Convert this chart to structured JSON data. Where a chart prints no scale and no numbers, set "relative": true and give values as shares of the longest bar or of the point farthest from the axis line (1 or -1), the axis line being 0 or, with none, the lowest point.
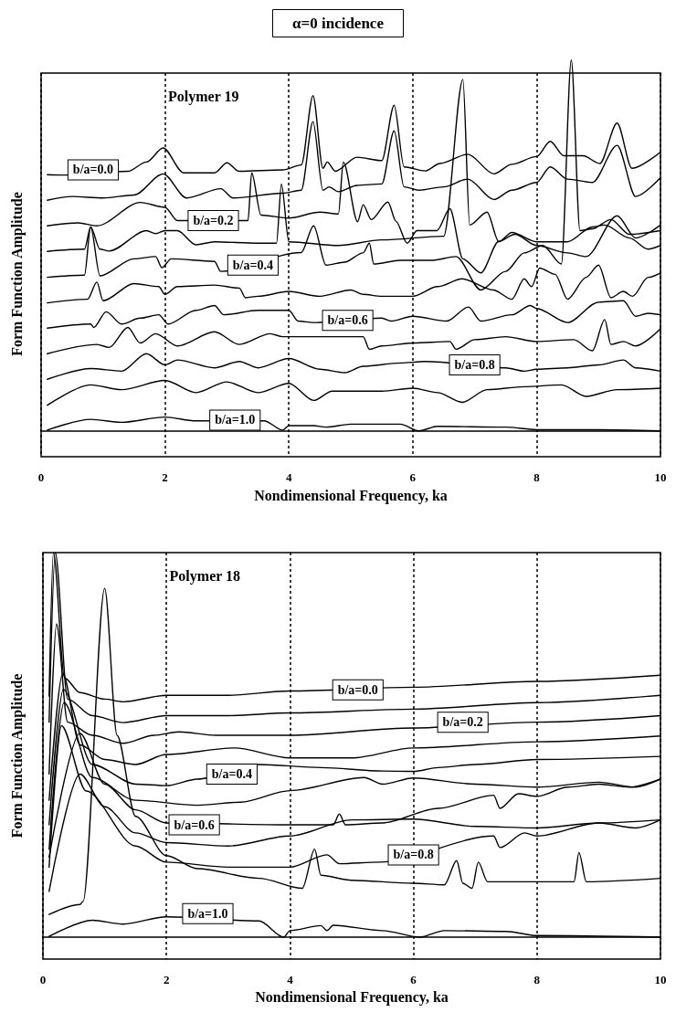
{
  "chart_data": [
    {
      "type": "line",
      "title": "α=0 incidence",
      "xlabel": "Nondimensional Frequency, ka",
      "ylabel": "Form Function Amplitude",
      "relative": true,
      "xlim": [
        0,
        10
      ],
      "xticks": [
        0,
        2,
        4,
        6,
        8,
        10
      ],
      "grid": "x",
      "marker": "none",
      "line_style": "solid",
      "annotations": [
        "Polymer 19",
        {
          "text": "b/a=0.0",
          "x": 0.84,
          "y": 0.704
        },
        {
          "text": "b/a=0.2",
          "x": 2.78,
          "y": 0.567
        },
        {
          "text": "b/a=0.4",
          "x": 3.42,
          "y": 0.447
        },
        {
          "text": "b/a=0.6",
          "x": 4.95,
          "y": 0.298
        },
        {
          "text": "b/a=0.8",
          "x": 7.0,
          "y": 0.178
        },
        {
          "text": "b/a=1.0",
          "x": 3.13,
          "y": 0.029
        }
      ],
      "series": [
        {
          "color": "#000000",
          "x": [
            0.1,
            0.35,
            1.4,
            1.7,
            1.97,
            2.3,
            2.8,
            3.0,
            3.2,
            3.9,
            4.2,
            4.39,
            4.55,
            4.62,
            4.75,
            5.1,
            5.5,
            5.7,
            5.86,
            6.2,
            6.44,
            6.89,
            7.31,
            7.6,
            8.0,
            8.22,
            8.44,
            8.75,
            9.02,
            9.3,
            9.54,
            10
          ],
          "values": [
            0.691,
            0.69,
            0.7,
            0.725,
            0.763,
            0.696,
            0.696,
            0.723,
            0.7,
            0.704,
            0.717,
            0.904,
            0.708,
            0.725,
            0.7,
            0.738,
            0.729,
            0.878,
            0.712,
            0.701,
            0.721,
            0.746,
            0.693,
            0.719,
            0.74,
            0.781,
            0.742,
            0.742,
            0.721,
            0.83,
            0.708,
            0.752
          ]
        },
        {
          "color": "#000000",
          "x": [
            0.1,
            0.5,
            1.0,
            1.5,
            1.97,
            2.35,
            2.9,
            3.1,
            3.9,
            4.2,
            4.39,
            4.55,
            4.65,
            4.8,
            5.1,
            5.5,
            5.7,
            5.86,
            6.1,
            6.5,
            6.89,
            7.31,
            7.6,
            8.0,
            8.22,
            8.5,
            8.9,
            9.3,
            9.6,
            10
          ],
          "values": [
            0.622,
            0.632,
            0.628,
            0.636,
            0.693,
            0.628,
            0.653,
            0.628,
            0.641,
            0.649,
            0.834,
            0.649,
            0.658,
            0.645,
            0.662,
            0.666,
            0.809,
            0.658,
            0.649,
            0.658,
            0.679,
            0.624,
            0.649,
            0.67,
            0.712,
            0.679,
            0.67,
            0.77,
            0.632,
            0.683
          ]
        },
        {
          "color": "#000000",
          "x": [
            0.1,
            0.6,
            0.9,
            1.6,
            2.0,
            2.2,
            3.34,
            3.4,
            3.55,
            4.0,
            4.5,
            4.8,
            4.88,
            5.11,
            5.2,
            5.33,
            5.6,
            5.73,
            5.91,
            6.07,
            6.39,
            6.6,
            6.81,
            7.1,
            7.39,
            7.65,
            8.0,
            8.5,
            8.8,
            9.3,
            9.6,
            10
          ],
          "values": [
            0.553,
            0.561,
            0.553,
            0.616,
            0.603,
            0.567,
            0.567,
            0.696,
            0.582,
            0.574,
            0.59,
            0.585,
            0.725,
            0.564,
            0.61,
            0.57,
            0.617,
            0.565,
            0.506,
            0.54,
            0.54,
            0.599,
            0.464,
            0.426,
            0.511,
            0.53,
            0.5,
            0.48,
            0.47,
            0.58,
            0.52,
            0.555
          ]
        },
        {
          "color": "#000000",
          "x": [
            0.1,
            0.7,
            0.8,
            0.95,
            1.1,
            1.7,
            1.85,
            2.0,
            2.2,
            2.5,
            2.8,
            3.5,
            3.8,
            3.88,
            4.0,
            4.8,
            5.5,
            6.5,
            6.81,
            6.92,
            7.2,
            7.39,
            7.6,
            8.0,
            8.5,
            8.9,
            9.1,
            9.5,
            9.8,
            10
          ],
          "values": [
            0.484,
            0.49,
            0.55,
            0.49,
            0.485,
            0.54,
            0.532,
            0.54,
            0.54,
            0.502,
            0.51,
            0.506,
            0.506,
            0.666,
            0.51,
            0.5,
            0.515,
            0.525,
            0.948,
            0.555,
            0.59,
            0.51,
            0.535,
            0.51,
            0.51,
            0.55,
            0.555,
            0.52,
            0.49,
            0.5
          ]
        },
        {
          "color": "#000000",
          "x": [
            0.1,
            0.7,
            0.8,
            0.95,
            1.5,
            1.85,
            1.95,
            2.1,
            2.8,
            2.9,
            4.2,
            4.4,
            4.6,
            4.9,
            5.2,
            5.3,
            5.37,
            5.8,
            6.3,
            6.7,
            7.1,
            7.5,
            7.8,
            8.1,
            8.4,
            8.56,
            8.7,
            8.9,
            9.2,
            9.5,
            10
          ],
          "values": [
            0.414,
            0.42,
            0.55,
            0.418,
            0.464,
            0.47,
            0.44,
            0.464,
            0.457,
            0.43,
            0.481,
            0.553,
            0.447,
            0.455,
            0.48,
            0.506,
            0.45,
            0.46,
            0.46,
            0.47,
            0.38,
            0.43,
            0.48,
            0.5,
            0.45,
            1.0,
            0.54,
            0.545,
            0.57,
            0.53,
            0.54
          ]
        },
        {
          "color": "#000000",
          "x": [
            0.1,
            0.75,
            0.9,
            1.0,
            1.5,
            1.9,
            2.0,
            2.2,
            2.8,
            3.2,
            3.3,
            3.5,
            4.0,
            4.5,
            5.0,
            5.2,
            5.5,
            6.0,
            6.4,
            6.8,
            7.3,
            7.6,
            7.8,
            7.92,
            8.05,
            8.3,
            8.5,
            8.8,
            9.0,
            9.2,
            9.4,
            9.55,
            9.8,
            10
          ],
          "values": [
            0.345,
            0.355,
            0.401,
            0.351,
            0.397,
            0.389,
            0.368,
            0.389,
            0.393,
            0.385,
            0.359,
            0.363,
            0.376,
            0.363,
            0.38,
            0.368,
            0.363,
            0.363,
            0.389,
            0.41,
            0.38,
            0.355,
            0.41,
            0.389,
            0.439,
            0.422,
            0.355,
            0.414,
            0.447,
            0.359,
            0.376,
            0.363,
            0.414,
            0.426
          ]
        },
        {
          "color": "#000000",
          "x": [
            0.1,
            0.8,
            0.85,
            1.05,
            1.3,
            1.6,
            1.9,
            2.05,
            2.5,
            2.8,
            2.95,
            3.5,
            4.0,
            4.15,
            4.4,
            5.5,
            5.65,
            6.0,
            6.55,
            6.9,
            7.1,
            7.6,
            7.9,
            8.0,
            8.5,
            9.0,
            9.4,
            9.6,
            9.8,
            10
          ],
          "values": [
            0.277,
            0.288,
            0.279,
            0.321,
            0.288,
            0.304,
            0.313,
            0.288,
            0.325,
            0.338,
            0.313,
            0.325,
            0.325,
            0.296,
            0.292,
            0.304,
            0.296,
            0.309,
            0.296,
            0.334,
            0.296,
            0.313,
            0.338,
            0.33,
            0.292,
            0.347,
            0.351,
            0.309,
            0.317,
            0.313
          ]
        },
        {
          "color": "#000000",
          "x": [
            0.1,
            0.9,
            1.1,
            1.4,
            1.6,
            1.85,
            2.2,
            2.8,
            3.2,
            3.7,
            3.9,
            4.6,
            5.2,
            5.3,
            5.5,
            6.0,
            6.6,
            6.7,
            7.0,
            7.5,
            8.0,
            8.6,
            8.9,
            9.1,
            9.2,
            9.4,
            9.6,
            10
          ],
          "values": [
            0.208,
            0.233,
            0.225,
            0.279,
            0.237,
            0.262,
            0.229,
            0.267,
            0.233,
            0.262,
            0.254,
            0.254,
            0.254,
            0.22,
            0.229,
            0.237,
            0.241,
            0.22,
            0.246,
            0.254,
            0.241,
            0.246,
            0.216,
            0.3,
            0.233,
            0.241,
            0.229,
            0.275
          ]
        },
        {
          "color": "#000000",
          "x": [
            0.1,
            0.8,
            1.3,
            1.7,
            2.0,
            2.2,
            2.8,
            3.2,
            3.5,
            4.0,
            4.5,
            4.9,
            5.2,
            5.8,
            6.2,
            7.5,
            7.8,
            8.0,
            8.5,
            9.0,
            9.4,
            9.6,
            10
          ],
          "values": [
            0.139,
            0.168,
            0.161,
            0.208,
            0.178,
            0.191,
            0.17,
            0.187,
            0.17,
            0.195,
            0.166,
            0.157,
            0.174,
            0.183,
            0.187,
            0.17,
            0.161,
            0.166,
            0.17,
            0.178,
            0.191,
            0.17,
            0.161
          ]
        },
        {
          "color": "#000000",
          "x": [
            0.1,
            0.8,
            1.3,
            2.0,
            2.5,
            3.0,
            3.5,
            4.0,
            4.4,
            4.7,
            5.5,
            6.0,
            6.4,
            6.8,
            7.2,
            7.8,
            8.4,
            8.8,
            9.3,
            10
          ],
          "values": [
            0.069,
            0.124,
            0.111,
            0.136,
            0.103,
            0.132,
            0.103,
            0.128,
            0.082,
            0.107,
            0.107,
            0.115,
            0.103,
            0.077,
            0.111,
            0.119,
            0.124,
            0.093,
            0.111,
            0.115
          ]
        },
        {
          "color": "#000000",
          "x": [
            0.1,
            0.8,
            1.3,
            2.0,
            2.5,
            3.6,
            3.9,
            4.0,
            4.4,
            4.6,
            5.0,
            5.8,
            6.1,
            6.4,
            7.5,
            8.0,
            9.0,
            10
          ],
          "values": [
            0.002,
            0.031,
            0.023,
            0.037,
            0.027,
            0.027,
            0.002,
            0.014,
            0.014,
            0.01,
            0.018,
            0.018,
            0,
            0.012,
            0.01,
            0.003,
            0.003,
            0
          ]
        }
      ]
    },
    {
      "type": "line",
      "xlabel": "Nondimensional Frequency, ka",
      "ylabel": "Form Function Amplitude",
      "relative": true,
      "xlim": [
        0,
        10
      ],
      "xticks": [
        0,
        2,
        4,
        6,
        8,
        10
      ],
      "grid": "x",
      "marker": "none",
      "line_style": "solid",
      "annotations": [
        "Polymer 18",
        {
          "text": "b/a=0.0",
          "x": 5.1,
          "y": 0.643
        },
        {
          "text": "b/a=0.2",
          "x": 6.8,
          "y": 0.559
        },
        {
          "text": "b/a=0.4",
          "x": 3.06,
          "y": 0.424
        },
        {
          "text": "b/a=0.6",
          "x": 2.45,
          "y": 0.292
        },
        {
          "text": "b/a=0.8",
          "x": 6.0,
          "y": 0.214
        },
        {
          "text": "b/a=1.0",
          "x": 2.67,
          "y": 0.061
        }
      ],
      "series": [
        {
          "color": "#000000",
          "x": [
            0.1,
            0.17,
            0.35,
            0.6,
            1.0,
            1.3,
            2.0,
            3.0,
            4.0,
            6.0,
            8.0,
            10
          ],
          "values": [
            0.627,
            1.0,
            0.674,
            0.636,
            0.619,
            0.612,
            0.629,
            0.629,
            0.64,
            0.65,
            0.665,
            0.681
          ]
        },
        {
          "color": "#000000",
          "x": [
            0.1,
            0.2,
            0.4,
            0.8,
            1.3,
            2.0,
            3.0,
            4.0,
            6.0,
            8.0,
            10
          ],
          "values": [
            0.559,
            1.0,
            0.619,
            0.576,
            0.558,
            0.576,
            0.576,
            0.583,
            0.593,
            0.61,
            0.629
          ]
        },
        {
          "color": "#000000",
          "x": [
            0.1,
            0.22,
            0.4,
            0.8,
            1.3,
            1.8,
            2.2,
            2.8,
            4.0,
            6.0,
            8.0,
            10
          ],
          "values": [
            0.424,
            0.814,
            0.559,
            0.525,
            0.504,
            0.525,
            0.534,
            0.525,
            0.525,
            0.544,
            0.559,
            0.576
          ]
        },
        {
          "color": "#000000",
          "x": [
            0.1,
            0.32,
            0.6,
            1.0,
            1.5,
            2.0,
            3.1,
            4.0,
            5.0,
            6.0,
            8.0,
            10
          ],
          "values": [
            0.356,
            0.686,
            0.5,
            0.462,
            0.449,
            0.475,
            0.492,
            0.466,
            0.466,
            0.492,
            0.508,
            0.523
          ]
        },
        {
          "color": "#000000",
          "x": [
            0.1,
            0.33,
            0.8,
            1.5,
            2.0,
            2.5,
            3.5,
            4.5,
            5.5,
            6.0,
            6.4,
            7.0,
            8.0,
            10
          ],
          "values": [
            0.292,
            0.644,
            0.449,
            0.398,
            0.394,
            0.411,
            0.449,
            0.441,
            0.432,
            0.431,
            0.441,
            0.449,
            0.462,
            0.47
          ]
        },
        {
          "color": "#000000",
          "x": [
            0.1,
            0.34,
            0.8,
            1.5,
            2.5,
            3.2,
            4.0,
            5.2,
            5.5,
            6.0,
            7.0,
            8.0,
            9.0,
            9.6,
            10
          ],
          "values": [
            0.229,
            0.61,
            0.415,
            0.356,
            0.343,
            0.351,
            0.381,
            0.415,
            0.398,
            0.414,
            0.398,
            0.39,
            0.403,
            0.39,
            0.411
          ]
        },
        {
          "color": "#000000",
          "x": [
            0.1,
            0.6,
            1.0,
            1.5,
            2.0,
            4.0,
            4.7,
            4.8,
            4.9,
            5.5,
            6.4,
            7.3,
            7.4,
            7.7,
            8.0,
            8.5,
            9.0,
            9.5,
            10
          ],
          "values": [
            0.208,
            0.53,
            0.398,
            0.331,
            0.297,
            0.292,
            0.292,
            0.32,
            0.292,
            0.297,
            0.335,
            0.369,
            0.335,
            0.373,
            0.366,
            0.39,
            0.398,
            0.39,
            0.411
          ]
        },
        {
          "color": "#000000",
          "x": [
            0.1,
            0.6,
            1.0,
            1.5,
            2.0,
            3.0,
            4.0,
            5.0,
            6.0,
            7.0,
            8.0,
            9.0,
            9.6,
            10
          ],
          "values": [
            0.119,
            0.424,
            0.339,
            0.271,
            0.246,
            0.237,
            0.263,
            0.305,
            0.307,
            0.288,
            0.284,
            0.297,
            0.284,
            0.305
          ]
        },
        {
          "color": "#000000",
          "x": [
            0.1,
            0.3,
            0.7,
            1.5,
            2.0,
            3.0,
            4.0,
            4.6,
            4.8,
            5.45,
            7.3,
            7.4,
            7.8,
            8.0,
            9.0,
            10
          ],
          "values": [
            0.182,
            0.55,
            0.38,
            0.237,
            0.195,
            0.182,
            0.182,
            0.214,
            0.191,
            0.195,
            0.263,
            0.233,
            0.271,
            0.263,
            0.297,
            0.305
          ]
        },
        {
          "color": "#000000",
          "x": [
            0.1,
            0.6,
            0.65,
            1.0,
            1.2,
            1.5,
            2.0,
            2.5,
            3.5,
            4.2,
            4.4,
            4.5,
            5.0,
            6.0,
            6.5,
            6.7,
            6.8,
            6.95,
            7.05,
            7.2,
            8.0,
            8.6,
            8.68,
            8.8,
            10
          ],
          "values": [
            0.059,
            0.085,
            0.093,
            0.907,
            0.525,
            0.314,
            0.212,
            0.178,
            0.153,
            0.127,
            0.229,
            0.161,
            0.148,
            0.14,
            0.136,
            0.199,
            0.14,
            0.127,
            0.195,
            0.144,
            0.144,
            0.144,
            0.22,
            0.144,
            0.153
          ]
        },
        {
          "color": "#000000",
          "x": [
            0.1,
            0.8,
            1.3,
            2.0,
            3.5,
            3.9,
            4.0,
            4.5,
            4.6,
            4.7,
            5.5,
            6.1,
            6.5,
            7.5,
            8.0,
            10
          ],
          "values": [
            0.002,
            0.044,
            0.034,
            0.053,
            0.042,
            0,
            0.017,
            0.03,
            0.017,
            0.031,
            0.017,
            0,
            0.017,
            0.015,
            0.004,
            0
          ]
        }
      ]
    }
  ]
}
